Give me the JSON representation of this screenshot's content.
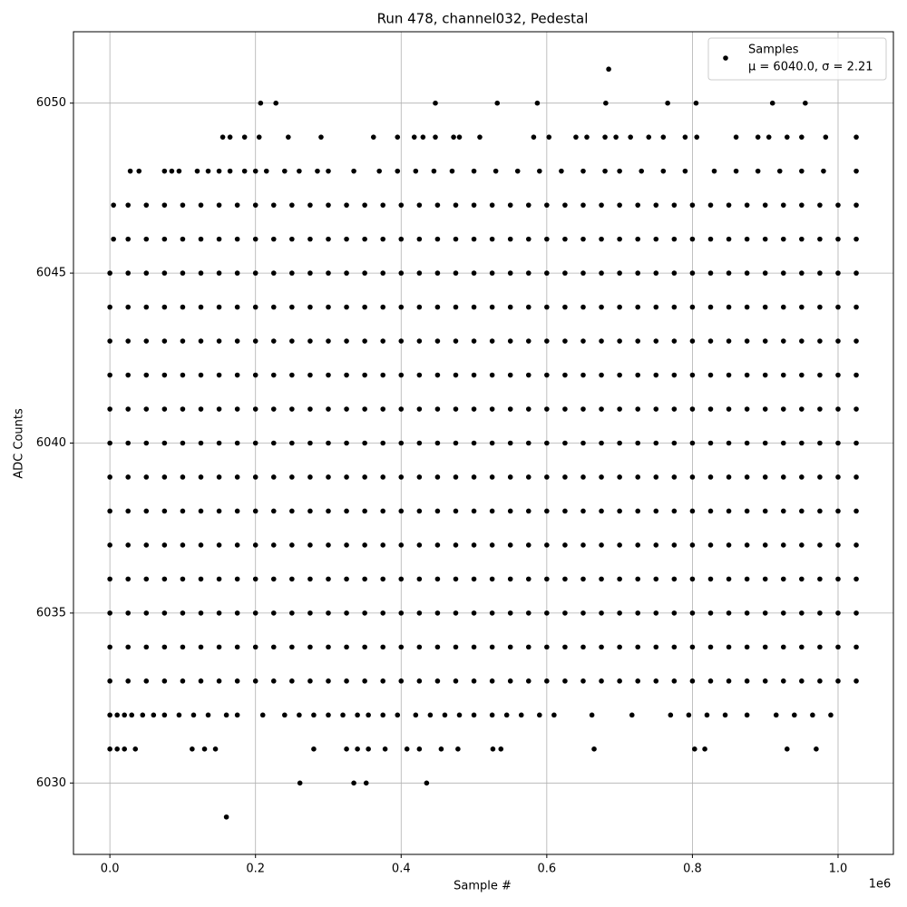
{
  "chart_data": {
    "type": "scatter",
    "title": "Run 478, channel032, Pedestal",
    "xlabel": "Sample #",
    "ylabel": "ADC Counts",
    "x_offset_label": "1e6",
    "xlim": [
      -50000,
      1076000
    ],
    "ylim": [
      6027.9,
      6052.1
    ],
    "xticks": [
      {
        "value": 0,
        "label": "0.0"
      },
      {
        "value": 200000,
        "label": "0.2"
      },
      {
        "value": 400000,
        "label": "0.4"
      },
      {
        "value": 600000,
        "label": "0.6"
      },
      {
        "value": 800000,
        "label": "0.8"
      },
      {
        "value": 1000000,
        "label": "1.0"
      }
    ],
    "yticks": [
      6030,
      6035,
      6040,
      6045,
      6050
    ],
    "grid": true,
    "color": "#000000",
    "legend_position": "upper right",
    "legend": {
      "label": "Samples",
      "stats": "μ = 6040.0, σ = 2.21"
    },
    "levels": [
      {
        "y": 6051,
        "x": [
          685000
        ]
      },
      {
        "y": 6050,
        "x": [
          207000,
          228000,
          447000,
          532000,
          587000,
          681000,
          766000,
          805000,
          910000,
          955000
        ]
      },
      {
        "y": 6049,
        "x": [
          155000,
          165000,
          185000,
          205000,
          245000,
          290000,
          362000,
          395000,
          418000,
          430000,
          447000,
          472000,
          480000,
          508000,
          582000,
          603000,
          640000,
          655000,
          680000,
          695000,
          715000,
          740000,
          760000,
          790000,
          806000,
          860000,
          890000,
          905000,
          930000,
          950000,
          983000,
          1025000
        ]
      },
      {
        "y": 6048,
        "x": [
          28000,
          40000,
          75000,
          85000,
          95000,
          120000,
          135000,
          150000,
          165000,
          185000,
          200000,
          215000,
          240000,
          260000,
          285000,
          300000,
          335000,
          370000,
          395000,
          420000,
          445000,
          470000,
          500000,
          530000,
          560000,
          590000,
          620000,
          650000,
          680000,
          700000,
          730000,
          760000,
          790000,
          830000,
          860000,
          890000,
          920000,
          950000,
          980000,
          1025000
        ]
      },
      {
        "y": 6047,
        "x": [
          5000,
          25000,
          50000,
          75000,
          100000,
          125000,
          150000,
          175000,
          200000,
          225000,
          250000,
          275000,
          300000,
          325000,
          350000,
          375000,
          400000,
          425000,
          450000,
          475000,
          500000,
          525000,
          550000,
          575000,
          600000,
          625000,
          650000,
          675000,
          700000,
          725000,
          750000,
          775000,
          800000,
          825000,
          850000,
          875000,
          900000,
          925000,
          950000,
          975000,
          1000000,
          1025000
        ]
      },
      {
        "y": 6046,
        "x": [
          5000,
          25000,
          50000,
          75000,
          100000,
          125000,
          150000,
          175000,
          200000,
          225000,
          250000,
          275000,
          300000,
          325000,
          350000,
          375000,
          400000,
          425000,
          450000,
          475000,
          500000,
          525000,
          550000,
          575000,
          600000,
          625000,
          650000,
          675000,
          700000,
          725000,
          750000,
          775000,
          800000,
          825000,
          850000,
          875000,
          900000,
          925000,
          950000,
          975000,
          1000000,
          1025000
        ]
      },
      {
        "y": 6045,
        "x": [
          0,
          25000,
          50000,
          75000,
          100000,
          125000,
          150000,
          175000,
          200000,
          225000,
          250000,
          275000,
          300000,
          325000,
          350000,
          375000,
          400000,
          425000,
          450000,
          475000,
          500000,
          525000,
          550000,
          575000,
          600000,
          625000,
          650000,
          675000,
          700000,
          725000,
          750000,
          775000,
          800000,
          825000,
          850000,
          875000,
          900000,
          925000,
          950000,
          975000,
          1000000,
          1025000
        ]
      },
      {
        "y": 6044,
        "x": [
          0,
          25000,
          50000,
          75000,
          100000,
          125000,
          150000,
          175000,
          200000,
          225000,
          250000,
          275000,
          300000,
          325000,
          350000,
          375000,
          400000,
          425000,
          450000,
          475000,
          500000,
          525000,
          550000,
          575000,
          600000,
          625000,
          650000,
          675000,
          700000,
          725000,
          750000,
          775000,
          800000,
          825000,
          850000,
          875000,
          900000,
          925000,
          950000,
          975000,
          1000000,
          1025000
        ]
      },
      {
        "y": 6043,
        "x": [
          0,
          25000,
          50000,
          75000,
          100000,
          125000,
          150000,
          175000,
          200000,
          225000,
          250000,
          275000,
          300000,
          325000,
          350000,
          375000,
          400000,
          425000,
          450000,
          475000,
          500000,
          525000,
          550000,
          575000,
          600000,
          625000,
          650000,
          675000,
          700000,
          725000,
          750000,
          775000,
          800000,
          825000,
          850000,
          875000,
          900000,
          925000,
          950000,
          975000,
          1000000,
          1025000
        ]
      },
      {
        "y": 6042,
        "x": [
          0,
          25000,
          50000,
          75000,
          100000,
          125000,
          150000,
          175000,
          200000,
          225000,
          250000,
          275000,
          300000,
          325000,
          350000,
          375000,
          400000,
          425000,
          450000,
          475000,
          500000,
          525000,
          550000,
          575000,
          600000,
          625000,
          650000,
          675000,
          700000,
          725000,
          750000,
          775000,
          800000,
          825000,
          850000,
          875000,
          900000,
          925000,
          950000,
          975000,
          1000000,
          1025000
        ]
      },
      {
        "y": 6041,
        "x": [
          0,
          25000,
          50000,
          75000,
          100000,
          125000,
          150000,
          175000,
          200000,
          225000,
          250000,
          275000,
          300000,
          325000,
          350000,
          375000,
          400000,
          425000,
          450000,
          475000,
          500000,
          525000,
          550000,
          575000,
          600000,
          625000,
          650000,
          675000,
          700000,
          725000,
          750000,
          775000,
          800000,
          825000,
          850000,
          875000,
          900000,
          925000,
          950000,
          975000,
          1000000,
          1025000
        ]
      },
      {
        "y": 6040,
        "x": [
          0,
          25000,
          50000,
          75000,
          100000,
          125000,
          150000,
          175000,
          200000,
          225000,
          250000,
          275000,
          300000,
          325000,
          350000,
          375000,
          400000,
          425000,
          450000,
          475000,
          500000,
          525000,
          550000,
          575000,
          600000,
          625000,
          650000,
          675000,
          700000,
          725000,
          750000,
          775000,
          800000,
          825000,
          850000,
          875000,
          900000,
          925000,
          950000,
          975000,
          1000000,
          1025000
        ]
      },
      {
        "y": 6039,
        "x": [
          0,
          25000,
          50000,
          75000,
          100000,
          125000,
          150000,
          175000,
          200000,
          225000,
          250000,
          275000,
          300000,
          325000,
          350000,
          375000,
          400000,
          425000,
          450000,
          475000,
          500000,
          525000,
          550000,
          575000,
          600000,
          625000,
          650000,
          675000,
          700000,
          725000,
          750000,
          775000,
          800000,
          825000,
          850000,
          875000,
          900000,
          925000,
          950000,
          975000,
          1000000,
          1025000
        ]
      },
      {
        "y": 6038,
        "x": [
          0,
          25000,
          50000,
          75000,
          100000,
          125000,
          150000,
          175000,
          200000,
          225000,
          250000,
          275000,
          300000,
          325000,
          350000,
          375000,
          400000,
          425000,
          450000,
          475000,
          500000,
          525000,
          550000,
          575000,
          600000,
          625000,
          650000,
          675000,
          700000,
          725000,
          750000,
          775000,
          800000,
          825000,
          850000,
          875000,
          900000,
          925000,
          950000,
          975000,
          1000000,
          1025000
        ]
      },
      {
        "y": 6037,
        "x": [
          0,
          25000,
          50000,
          75000,
          100000,
          125000,
          150000,
          175000,
          200000,
          225000,
          250000,
          275000,
          300000,
          325000,
          350000,
          375000,
          400000,
          425000,
          450000,
          475000,
          500000,
          525000,
          550000,
          575000,
          600000,
          625000,
          650000,
          675000,
          700000,
          725000,
          750000,
          775000,
          800000,
          825000,
          850000,
          875000,
          900000,
          925000,
          950000,
          975000,
          1000000,
          1025000
        ]
      },
      {
        "y": 6036,
        "x": [
          0,
          25000,
          50000,
          75000,
          100000,
          125000,
          150000,
          175000,
          200000,
          225000,
          250000,
          275000,
          300000,
          325000,
          350000,
          375000,
          400000,
          425000,
          450000,
          475000,
          500000,
          525000,
          550000,
          575000,
          600000,
          625000,
          650000,
          675000,
          700000,
          725000,
          750000,
          775000,
          800000,
          825000,
          850000,
          875000,
          900000,
          925000,
          950000,
          975000,
          1000000,
          1025000
        ]
      },
      {
        "y": 6035,
        "x": [
          0,
          25000,
          50000,
          75000,
          100000,
          125000,
          150000,
          175000,
          200000,
          225000,
          250000,
          275000,
          300000,
          325000,
          350000,
          375000,
          400000,
          425000,
          450000,
          475000,
          500000,
          525000,
          550000,
          575000,
          600000,
          625000,
          650000,
          675000,
          700000,
          725000,
          750000,
          775000,
          800000,
          825000,
          850000,
          875000,
          900000,
          925000,
          950000,
          975000,
          1000000,
          1025000
        ]
      },
      {
        "y": 6034,
        "x": [
          0,
          25000,
          50000,
          75000,
          100000,
          125000,
          150000,
          175000,
          200000,
          225000,
          250000,
          275000,
          300000,
          325000,
          350000,
          375000,
          400000,
          425000,
          450000,
          475000,
          500000,
          525000,
          550000,
          575000,
          600000,
          625000,
          650000,
          675000,
          700000,
          725000,
          750000,
          775000,
          800000,
          825000,
          850000,
          875000,
          900000,
          925000,
          950000,
          975000,
          1000000,
          1025000
        ]
      },
      {
        "y": 6033,
        "x": [
          0,
          25000,
          50000,
          75000,
          100000,
          125000,
          150000,
          175000,
          200000,
          225000,
          250000,
          275000,
          300000,
          325000,
          350000,
          375000,
          400000,
          425000,
          450000,
          475000,
          500000,
          525000,
          550000,
          575000,
          600000,
          625000,
          650000,
          675000,
          700000,
          725000,
          750000,
          775000,
          800000,
          825000,
          850000,
          875000,
          900000,
          925000,
          950000,
          975000,
          1000000,
          1025000
        ]
      },
      {
        "y": 6032,
        "x": [
          0,
          10000,
          20000,
          30000,
          45000,
          60000,
          75000,
          95000,
          115000,
          135000,
          160000,
          175000,
          210000,
          240000,
          260000,
          280000,
          300000,
          320000,
          340000,
          355000,
          375000,
          395000,
          420000,
          440000,
          460000,
          480000,
          500000,
          525000,
          545000,
          565000,
          590000,
          610000,
          662000,
          717000,
          770000,
          795000,
          820000,
          845000,
          875000,
          915000,
          940000,
          965000,
          990000
        ]
      },
      {
        "y": 6031,
        "x": [
          0,
          10000,
          20000,
          35000,
          113000,
          130000,
          145000,
          280000,
          325000,
          340000,
          355000,
          378000,
          408000,
          425000,
          455000,
          478000,
          526000,
          537000,
          665000,
          803000,
          817000,
          930000,
          970000
        ]
      },
      {
        "y": 6030,
        "x": [
          261000,
          335000,
          352000,
          435000
        ]
      },
      {
        "y": 6029,
        "x": [
          160000
        ]
      }
    ]
  }
}
